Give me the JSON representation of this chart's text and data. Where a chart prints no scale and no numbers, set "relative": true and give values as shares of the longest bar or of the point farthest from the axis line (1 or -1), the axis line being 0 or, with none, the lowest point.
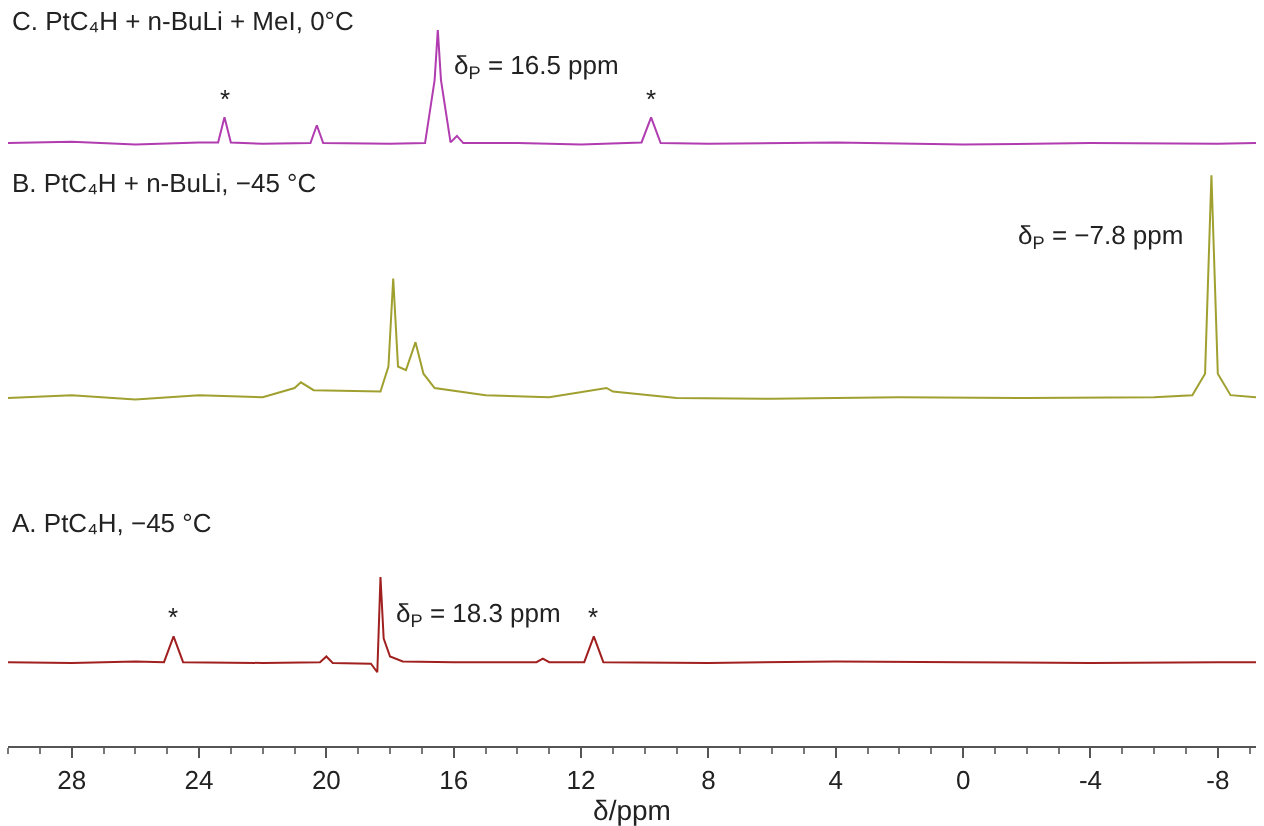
{
  "chart_data": {
    "type": "line",
    "relative": true,
    "xlabel": "δ/ppm",
    "xlim": [
      30,
      -9.2
    ],
    "xticks": [
      28,
      24,
      20,
      16,
      12,
      8,
      4,
      0,
      -4,
      -8
    ],
    "marker": "none",
    "line_style": "solid",
    "series": [
      {
        "color": "#b03cb0",
        "x": [
          30,
          28,
          26,
          24,
          23.4,
          23.2,
          23.0,
          22,
          20.5,
          20.3,
          20.1,
          18,
          16.9,
          16.6,
          16.5,
          16.4,
          16.1,
          15.9,
          15.7,
          14,
          12,
          10.1,
          9.8,
          9.5,
          8,
          4,
          0,
          -4,
          -8,
          -9.2
        ],
        "values": [
          0.842,
          0.844,
          0.84,
          0.843,
          0.843,
          0.878,
          0.843,
          0.841,
          0.842,
          0.867,
          0.842,
          0.841,
          0.842,
          0.93,
          1.0,
          0.93,
          0.843,
          0.852,
          0.842,
          0.842,
          0.84,
          0.843,
          0.878,
          0.842,
          0.841,
          0.843,
          0.84,
          0.842,
          0.841,
          0.842
        ]
      },
      {
        "color": "#a0a030",
        "x": [
          30,
          28,
          26,
          24,
          22,
          21.0,
          20.8,
          20.4,
          18.3,
          18.05,
          17.9,
          17.75,
          17.5,
          17.2,
          16.95,
          16.6,
          15,
          13,
          11.2,
          11,
          9,
          6,
          2,
          -2,
          -6,
          -7.2,
          -7.6,
          -7.8,
          -8.0,
          -8.4,
          -9.2
        ],
        "values": [
          0.486,
          0.49,
          0.484,
          0.49,
          0.487,
          0.5,
          0.508,
          0.497,
          0.495,
          0.53,
          0.653,
          0.53,
          0.525,
          0.564,
          0.52,
          0.5,
          0.49,
          0.487,
          0.5,
          0.495,
          0.486,
          0.485,
          0.487,
          0.486,
          0.487,
          0.49,
          0.52,
          0.797,
          0.52,
          0.49,
          0.487
        ]
      },
      {
        "color": "#a02020",
        "x": [
          30,
          28,
          26,
          25.1,
          24.8,
          24.5,
          22,
          20.2,
          20.0,
          19.8,
          18.6,
          18.4,
          18.3,
          18.2,
          18.0,
          17.6,
          16,
          13.4,
          13.2,
          13.0,
          11.9,
          11.6,
          11.3,
          8,
          4,
          0,
          -4,
          -8,
          -9.2
        ],
        "values": [
          0.117,
          0.116,
          0.118,
          0.117,
          0.153,
          0.117,
          0.116,
          0.117,
          0.125,
          0.116,
          0.115,
          0.103,
          0.236,
          0.15,
          0.125,
          0.118,
          0.117,
          0.117,
          0.122,
          0.117,
          0.117,
          0.153,
          0.117,
          0.116,
          0.118,
          0.117,
          0.116,
          0.117,
          0.117
        ]
      }
    ],
    "annotations": [
      "C. PtC₄H + n-BuLi + MeI, 0°C",
      "B. PtC₄H + n-BuLi, −45 °C",
      "A. PtC₄H, −45 °C",
      {
        "text": "δ$_{P}$ = 16.5 ppm",
        "x": 16.5,
        "y": 1.0
      },
      {
        "text": "δ$_{P}$ = −7.8 ppm",
        "x": -7.8,
        "y": 0.797
      },
      {
        "text": "δ$_{P}$ = 18.3 ppm",
        "x": 18.3,
        "y": 0.236
      },
      {
        "text": "*",
        "x": 23.2,
        "y": 0.878
      },
      {
        "text": "*",
        "x": 9.8,
        "y": 0.878
      },
      {
        "text": "*",
        "x": 24.8,
        "y": 0.153
      },
      {
        "text": "*",
        "x": 11.6,
        "y": 0.153
      }
    ]
  }
}
